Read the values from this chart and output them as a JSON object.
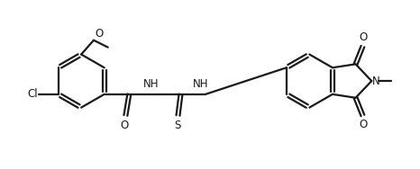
{
  "background_color": "#ffffff",
  "line_color": "#1a1a1a",
  "line_width": 1.6,
  "font_size": 8.5,
  "figsize": [
    4.66,
    1.88
  ],
  "dpi": 100,
  "labels": {
    "Cl": "Cl",
    "O_methoxy": "O",
    "NH1": "NH",
    "NH2": "NH",
    "O_carbonyl": "O",
    "S": "S",
    "N_imide": "N",
    "O_upper": "O",
    "O_lower": "O"
  }
}
